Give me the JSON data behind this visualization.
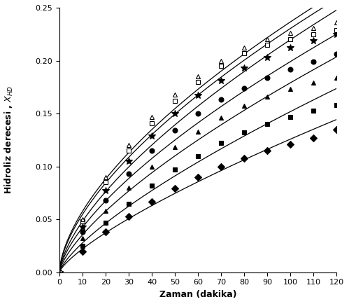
{
  "xlabel": "Zaman (dakika)",
  "ylabel": "Hidroliz derecesi , $X_{HD}$",
  "xlim": [
    0,
    120
  ],
  "ylim": [
    0.0,
    0.25
  ],
  "xticks": [
    0,
    10,
    20,
    30,
    40,
    50,
    60,
    70,
    80,
    90,
    100,
    110,
    120
  ],
  "yticks": [
    0.0,
    0.05,
    0.1,
    0.15,
    0.2,
    0.25
  ],
  "series": [
    {
      "marker": "D",
      "filled": true,
      "ms": 5,
      "data_x": [
        0,
        10,
        20,
        30,
        40,
        50,
        60,
        70,
        80,
        90,
        100,
        110,
        120
      ],
      "data_y": [
        0.0,
        0.02,
        0.038,
        0.053,
        0.067,
        0.079,
        0.09,
        0.1,
        0.108,
        0.115,
        0.121,
        0.127,
        0.135
      ]
    },
    {
      "marker": "s",
      "filled": true,
      "ms": 5,
      "data_x": [
        0,
        10,
        20,
        30,
        40,
        50,
        60,
        70,
        80,
        90,
        100,
        110,
        120
      ],
      "data_y": [
        0.0,
        0.025,
        0.047,
        0.065,
        0.082,
        0.097,
        0.11,
        0.122,
        0.132,
        0.14,
        0.147,
        0.153,
        0.158
      ]
    },
    {
      "marker": "^",
      "filled": true,
      "ms": 5,
      "data_x": [
        0,
        10,
        20,
        30,
        40,
        50,
        60,
        70,
        80,
        90,
        100,
        110,
        120
      ],
      "data_y": [
        0.0,
        0.032,
        0.058,
        0.08,
        0.1,
        0.118,
        0.133,
        0.146,
        0.157,
        0.166,
        0.173,
        0.179,
        0.184
      ]
    },
    {
      "marker": "o",
      "filled": true,
      "ms": 5,
      "data_x": [
        0,
        10,
        20,
        30,
        40,
        50,
        60,
        70,
        80,
        90,
        100,
        110,
        120
      ],
      "data_y": [
        0.0,
        0.038,
        0.068,
        0.093,
        0.115,
        0.134,
        0.15,
        0.163,
        0.174,
        0.184,
        0.192,
        0.199,
        0.206
      ]
    },
    {
      "marker": "*",
      "filled": true,
      "ms": 7,
      "data_x": [
        0,
        10,
        20,
        30,
        40,
        50,
        60,
        70,
        80,
        90,
        100,
        110,
        120
      ],
      "data_y": [
        0.0,
        0.043,
        0.077,
        0.105,
        0.129,
        0.15,
        0.167,
        0.181,
        0.193,
        0.203,
        0.212,
        0.219,
        0.225
      ]
    },
    {
      "marker": "s",
      "filled": false,
      "ms": 5,
      "data_x": [
        0,
        10,
        20,
        30,
        40,
        50,
        60,
        70,
        80,
        90,
        100,
        110,
        120
      ],
      "data_y": [
        0.0,
        0.048,
        0.085,
        0.115,
        0.141,
        0.162,
        0.18,
        0.195,
        0.207,
        0.215,
        0.22,
        0.225,
        0.229
      ]
    },
    {
      "marker": "^",
      "filled": false,
      "ms": 5,
      "data_x": [
        0,
        10,
        20,
        30,
        40,
        50,
        60,
        70,
        80,
        90,
        100,
        110,
        120
      ],
      "data_y": [
        0.0,
        0.05,
        0.09,
        0.12,
        0.147,
        0.168,
        0.185,
        0.2,
        0.212,
        0.22,
        0.226,
        0.231,
        0.236
      ]
    }
  ]
}
